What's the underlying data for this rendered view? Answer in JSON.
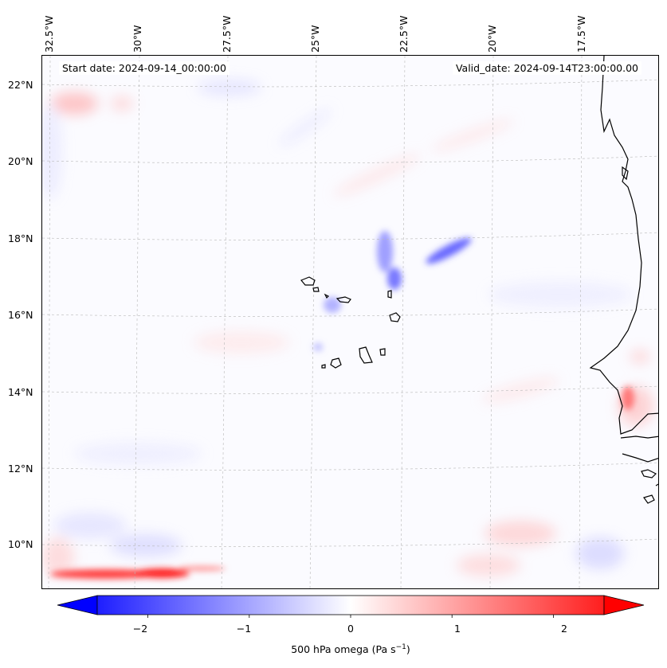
{
  "map": {
    "start_date_text": "Start date: 2024-09-14_00:00:00",
    "valid_date_text": "Valid_date: 2024-09-14T23:00:00.00",
    "lon_labels": [
      "32.5°W",
      "30°W",
      "27.5°W",
      "25°W",
      "22.5°W",
      "20°W",
      "17.5°W"
    ],
    "lat_labels": [
      "22°N",
      "20°N",
      "18°N",
      "16°N",
      "14°N",
      "12°N",
      "10°N"
    ],
    "extent": {
      "lon_min": -33.0,
      "lon_max": -15.0,
      "lat_min": 8.9,
      "lat_max": 22.7
    },
    "field": "500 hPa omega",
    "colors": {
      "negative_max": "#0000ff",
      "positive_max": "#ff0000",
      "zero": "#ffffff",
      "coastline": "#000000",
      "grid": "#b0b0b0"
    }
  },
  "colorbar": {
    "label_text": "500 hPa omega (Pa s",
    "label_exp": "−1",
    "label_close": ")",
    "ticks": [
      "−2",
      "−1",
      "0",
      "1",
      "2"
    ],
    "tick_values": [
      -2,
      -1,
      0,
      1,
      2
    ],
    "range": [
      -2.5,
      2.5
    ],
    "extend": "both",
    "cmap": "bwr"
  }
}
